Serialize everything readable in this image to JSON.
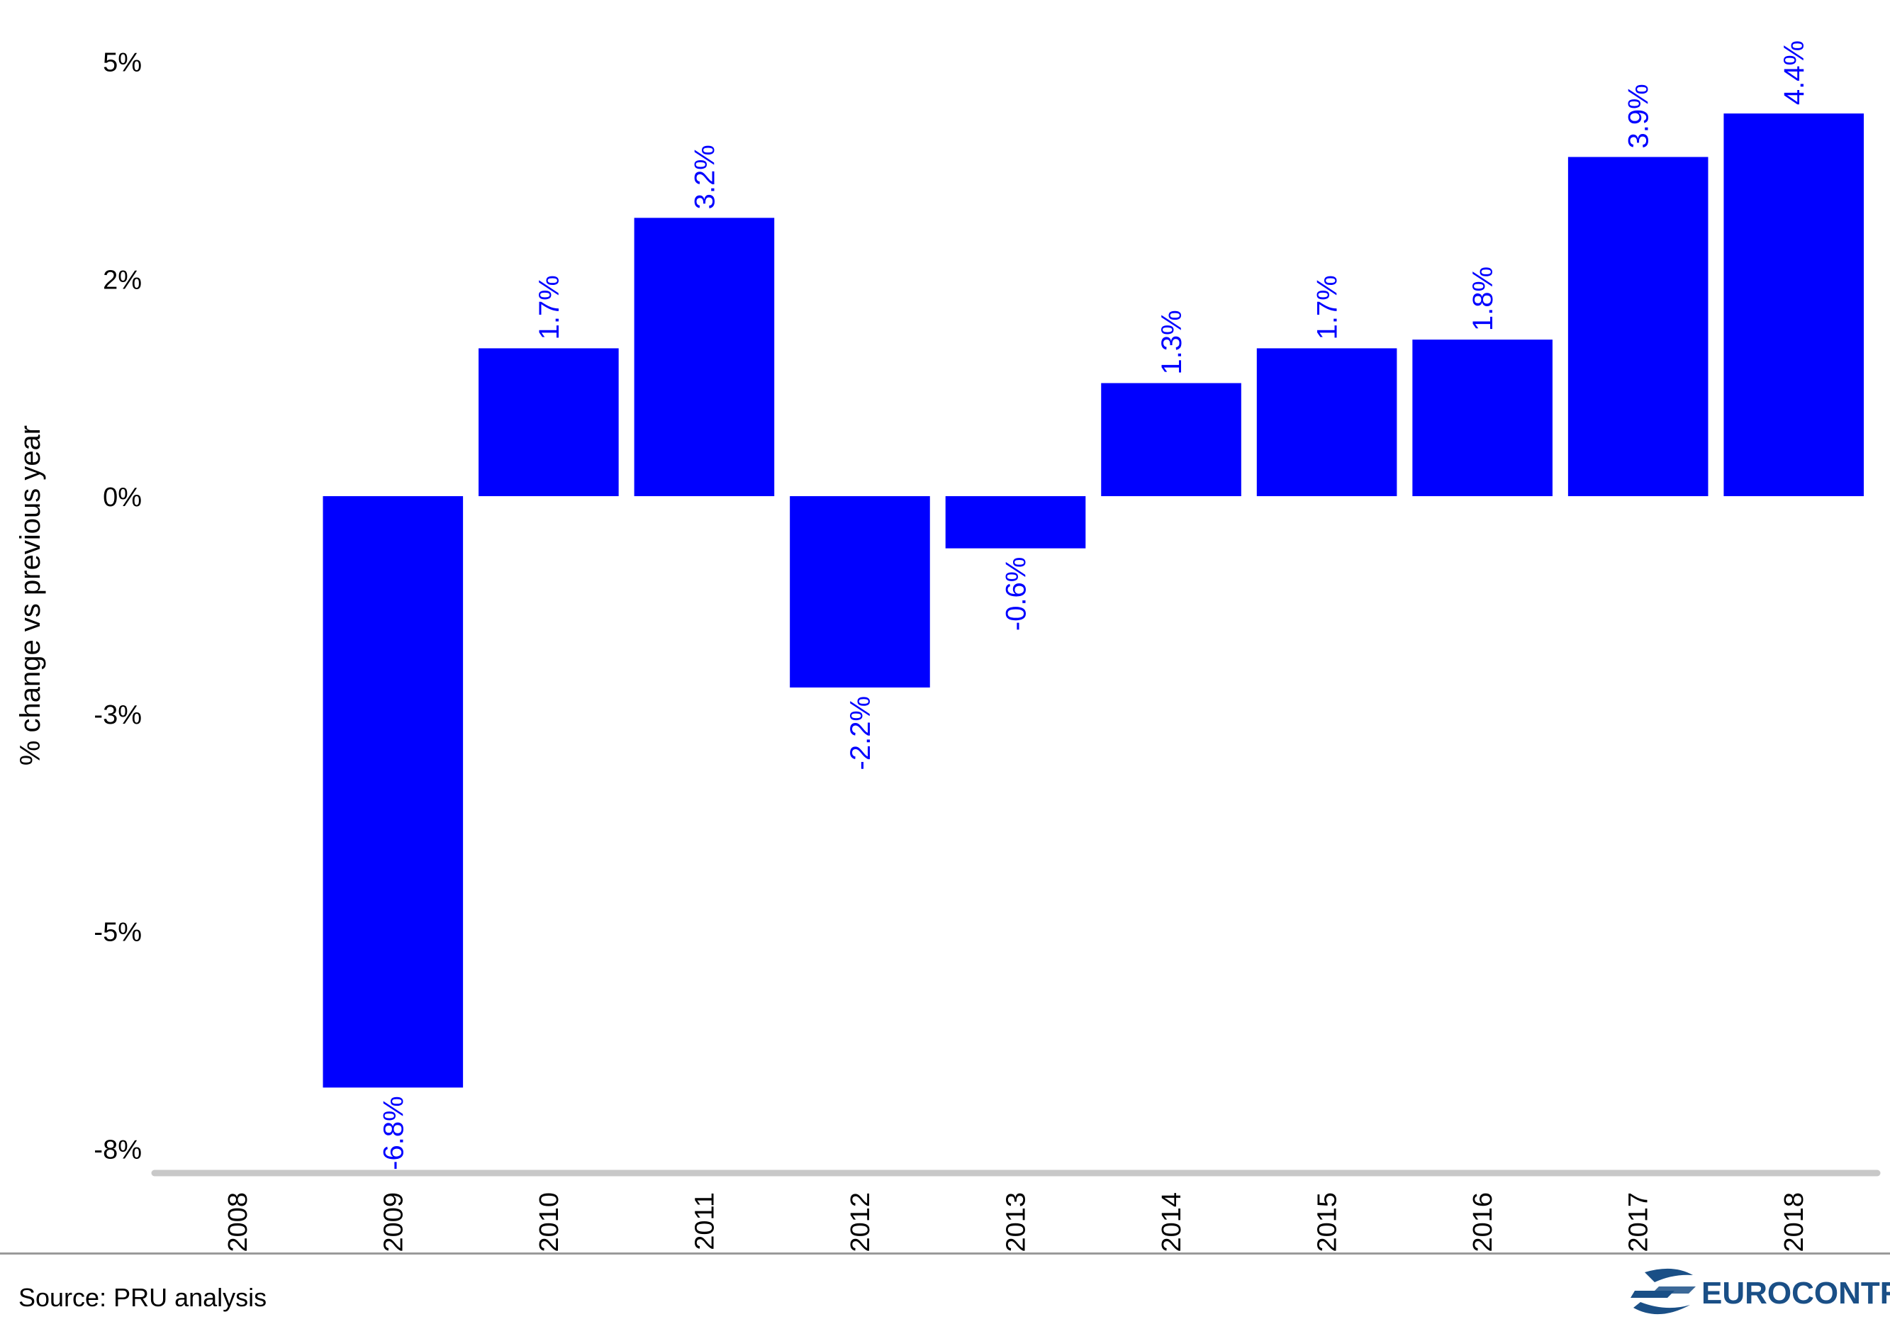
{
  "chart_data": {
    "type": "bar",
    "title": "",
    "ylabel": "% change vs previous year",
    "xlabel": "",
    "categories": [
      "2008",
      "2009",
      "2010",
      "2011",
      "2012",
      "2013",
      "2014",
      "2015",
      "2016",
      "2017",
      "2018"
    ],
    "values": [
      null,
      -6.8,
      1.7,
      3.2,
      -2.2,
      -0.6,
      1.3,
      1.7,
      1.8,
      3.9,
      4.4
    ],
    "data_labels": [
      "",
      "-6.8%",
      "1.7%",
      "3.2%",
      "-2.2%",
      "-0.6%",
      "1.3%",
      "1.7%",
      "1.8%",
      "3.9%",
      "4.4%"
    ],
    "yticks": [
      5,
      2.5,
      0,
      -2.5,
      -5,
      -7.5
    ],
    "ytick_labels": [
      "5%",
      "2%",
      "0%",
      "-3%",
      "-5%",
      "-8%"
    ],
    "ylim": [
      -7.8,
      5.3
    ],
    "bar_color": "#0000ff",
    "label_color": "#0000ff",
    "grid": false,
    "legend": "none"
  },
  "footer": {
    "source": "Source: PRU analysis",
    "logo_text": "EUROCONTROL"
  },
  "colors": {
    "bar": "#0000ff",
    "axis_line": "#c8c8c8",
    "logo": "#1a4f86"
  }
}
